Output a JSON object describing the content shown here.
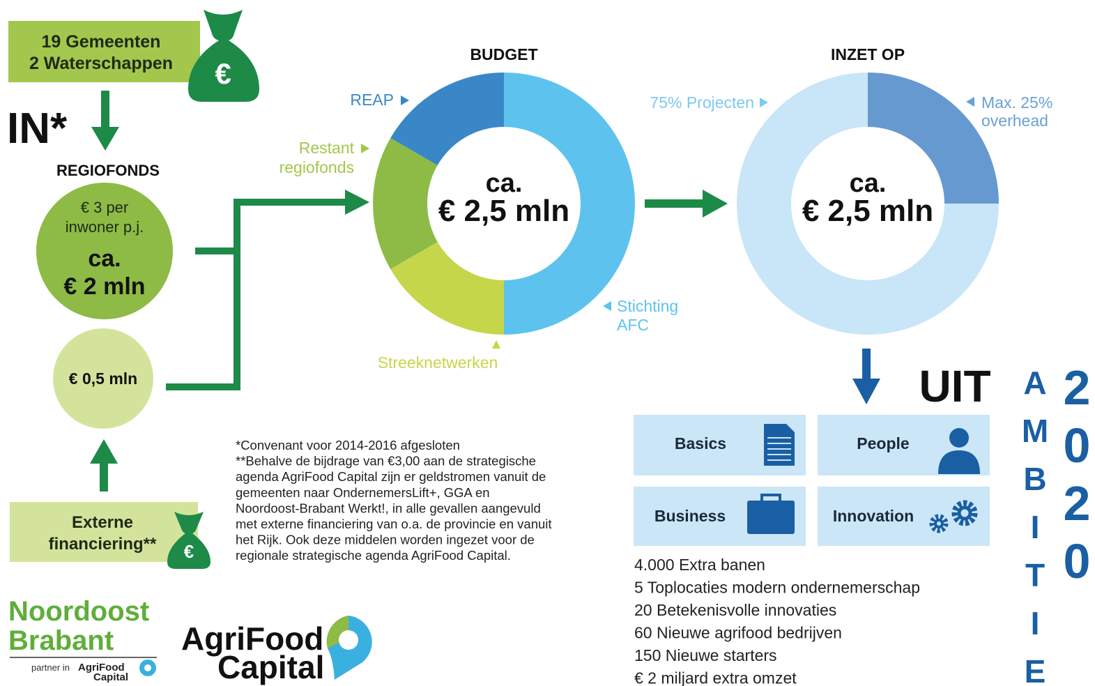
{
  "inflow": {
    "partners": [
      "19 Gemeenten",
      "2 Waterschappen"
    ],
    "in_label": "IN*",
    "fund_title": "REGIOFONDS",
    "fund_circle": [
      "€ 3 per",
      "inwoner p.j.",
      "ca.",
      "€ 2 mln"
    ],
    "external_circle": "€ 0,5 mln",
    "external_box": [
      "Externe",
      "financiering**"
    ]
  },
  "budget": {
    "title": "BUDGET",
    "center": [
      "ca.",
      "€ 2,5 mln"
    ],
    "labels": {
      "reap": "REAP",
      "restant": [
        "Restant",
        "regiofonds"
      ],
      "streek": "Streeknetwerken",
      "afc": [
        "Stichting",
        "AFC"
      ]
    }
  },
  "inzet": {
    "title": "INZET OP",
    "center": [
      "ca.",
      "€ 2,5 mln"
    ],
    "labels": {
      "projecten": "75% Projecten",
      "overhead": [
        "Max. 25%",
        "overhead"
      ]
    }
  },
  "output": {
    "title": "UIT",
    "boxes": [
      "Basics",
      "People",
      "Business",
      "Innovation"
    ],
    "goals": [
      "4.000 Extra banen",
      "5 Toplocaties modern ondernemerschap",
      "20 Betekenisvolle innovaties",
      "60 Nieuwe agrifood bedrijven",
      "150 Nieuwe starters",
      "€ 2 miljard extra omzet"
    ],
    "ambitie": [
      "A",
      "M",
      "B",
      "I",
      "T",
      "I",
      "E"
    ],
    "year": [
      "2",
      "0",
      "2",
      "0"
    ]
  },
  "footnote": [
    "*Convenant voor 2014-2016 afgesloten",
    "**Behalve de bijdrage van €3,00 aan de strategische",
    "agenda AgriFood Capital zijn er geldstromen vanuit de",
    "gemeenten naar OndernemersLift+, GGA en",
    "Noordoost-Brabant Werkt!, in alle gevallen  aangevuld",
    "met externe financiering van o.a. de provincie en vanuit",
    "het Rijk. Ook deze middelen worden ingezet voor de",
    "regionale strategische agenda AgriFood Capital."
  ],
  "logos": {
    "nob": [
      "Noordoost",
      "Brabant"
    ],
    "partner": "partner in",
    "small_brand": [
      "AgriFood",
      "Capital"
    ],
    "brand": [
      "AgriFood",
      "Capital"
    ]
  }
}
